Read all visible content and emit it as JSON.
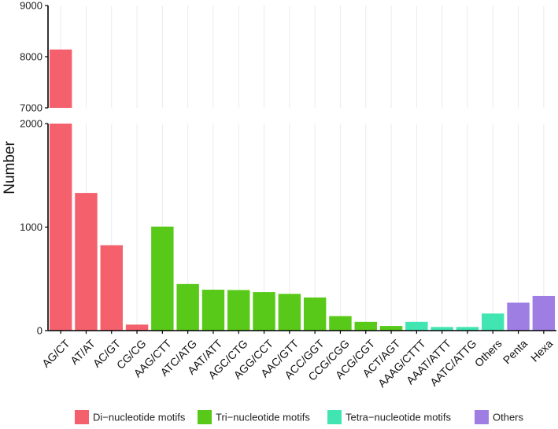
{
  "chart_data": {
    "type": "bar",
    "title": "",
    "xlabel": "",
    "ylabel": "Number",
    "axis_break": true,
    "upper_panel": {
      "ylim": [
        7000,
        9000
      ],
      "ticks": [
        7000,
        8000,
        9000
      ]
    },
    "lower_panel": {
      "ylim": [
        0,
        2000
      ],
      "ticks": [
        0,
        1000,
        2000
      ]
    },
    "grid": "vertical",
    "categories": [
      "AG/CT",
      "AT/AT",
      "AC/GT",
      "CG/CG",
      "AAG/CTT",
      "ATC/ATG",
      "AAT/ATT",
      "AGC/CTG",
      "AGG/CCT",
      "AAC/GTT",
      "ACC/GGT",
      "CCG/CGG",
      "ACG/CGT",
      "ACT/AGT",
      "AAAG/CTTT",
      "AAAT/ATTT",
      "AATC/ATTG",
      "Others",
      "Penta",
      "Hexa"
    ],
    "values": [
      8140,
      1330,
      825,
      58,
      1005,
      450,
      395,
      392,
      372,
      355,
      320,
      140,
      85,
      45,
      85,
      35,
      35,
      165,
      270,
      335
    ],
    "groups": [
      "di",
      "di",
      "di",
      "di",
      "tri",
      "tri",
      "tri",
      "tri",
      "tri",
      "tri",
      "tri",
      "tri",
      "tri",
      "tri",
      "tetra",
      "tetra",
      "tetra",
      "tetra",
      "others",
      "others"
    ],
    "legend": [
      {
        "key": "di",
        "label": "Di−nucleotide motifs",
        "color": "#f4606c"
      },
      {
        "key": "tri",
        "label": "Tri−nucleotide motifs",
        "color": "#58c918"
      },
      {
        "key": "tetra",
        "label": "Tetra−nucleotide motifs",
        "color": "#40e5b2"
      },
      {
        "key": "others",
        "label": "Others",
        "color": "#9e7ee3"
      }
    ],
    "legend_position": "bottom"
  }
}
